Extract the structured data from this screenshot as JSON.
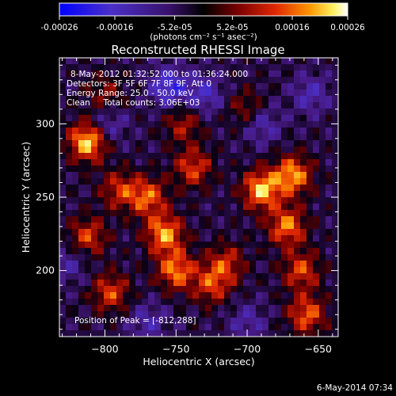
{
  "colorbar": {
    "ticks": [
      "-0.00026",
      "-0.00016",
      "-5.2e-05",
      "5.2e-05",
      "0.00016",
      "0.00026"
    ],
    "tick_values": [
      -0.00026,
      -0.00016,
      -5.2e-05,
      5.2e-05,
      0.00016,
      0.00026
    ],
    "range": [
      -0.00026,
      0.00026
    ],
    "unit_label": "(photons cm⁻² s⁻¹ asec⁻²)"
  },
  "title": "Reconstructed RHESSI Image",
  "info_lines": [
    "8-May-2012 01:32:52.000 to 01:36:24.000",
    "Detectors: 3F 5F 6F 7F 8F 9F, Att 0",
    "Energy Range: 25.0 - 50.0 keV",
    "Clean     Total counts: 3.06E+03"
  ],
  "peak_label": "Position of Peak = [-812,288]",
  "footer_timestamp": "6-May-2014 07:34",
  "colors": {
    "background": "#000000",
    "colormap": [
      "#0000ff",
      "#5a3cb4",
      "#1a0030",
      "#000000",
      "#8a0000",
      "#e23000",
      "#ff8c00",
      "#ffe84a",
      "#ffffff"
    ]
  },
  "chart_data": {
    "type": "heatmap",
    "title": "Reconstructed RHESSI Image",
    "xlabel": "Heliocentric X (arcsec)",
    "ylabel": "Heliocentric Y (arcsec)",
    "xlim": [
      -832,
      -636
    ],
    "ylim": [
      155,
      345
    ],
    "x_ticks": [
      -800,
      -750,
      -700,
      -650
    ],
    "x_tick_labels": [
      "−800",
      "−750",
      "−700",
      "−650"
    ],
    "y_ticks": [
      200,
      250,
      300
    ],
    "y_tick_labels": [
      "200",
      "250",
      "300"
    ],
    "peak_position": [
      -812,
      288
    ],
    "grid": false,
    "intensity_range": [
      -0.00026,
      0.00026
    ],
    "hotspots": [
      {
        "x": -812,
        "y": 288,
        "v": 0.00026
      },
      {
        "x": -812,
        "y": 223,
        "v": 0.00016
      },
      {
        "x": -796,
        "y": 185,
        "v": 0.00016
      },
      {
        "x": -790,
        "y": 255,
        "v": 0.00014
      },
      {
        "x": -770,
        "y": 250,
        "v": 0.00018
      },
      {
        "x": -758,
        "y": 225,
        "v": 0.00022
      },
      {
        "x": -750,
        "y": 200,
        "v": 0.0002
      },
      {
        "x": -745,
        "y": 300,
        "v": 0.00012
      },
      {
        "x": -738,
        "y": 270,
        "v": 0.00016
      },
      {
        "x": -725,
        "y": 190,
        "v": 0.00015
      },
      {
        "x": -715,
        "y": 205,
        "v": 0.00014
      },
      {
        "x": -690,
        "y": 255,
        "v": 0.00024
      },
      {
        "x": -672,
        "y": 230,
        "v": 0.0002
      },
      {
        "x": -668,
        "y": 265,
        "v": 0.00022
      },
      {
        "x": -662,
        "y": 200,
        "v": 0.00016
      },
      {
        "x": -658,
        "y": 170,
        "v": 0.00018
      },
      {
        "x": -700,
        "y": 310,
        "v": 0.00011
      },
      {
        "x": -800,
        "y": 320,
        "v": 0.0001
      }
    ],
    "coldspots": [
      {
        "x": -755,
        "y": 325,
        "v": -0.00016
      },
      {
        "x": -730,
        "y": 320,
        "v": -0.00012
      },
      {
        "x": -798,
        "y": 300,
        "v": -0.0001
      },
      {
        "x": -690,
        "y": 300,
        "v": -0.00011
      },
      {
        "x": -770,
        "y": 165,
        "v": -9e-05
      },
      {
        "x": -655,
        "y": 320,
        "v": -0.0001
      },
      {
        "x": -700,
        "y": 165,
        "v": -8e-05
      },
      {
        "x": -825,
        "y": 205,
        "v": -8e-05
      }
    ]
  }
}
